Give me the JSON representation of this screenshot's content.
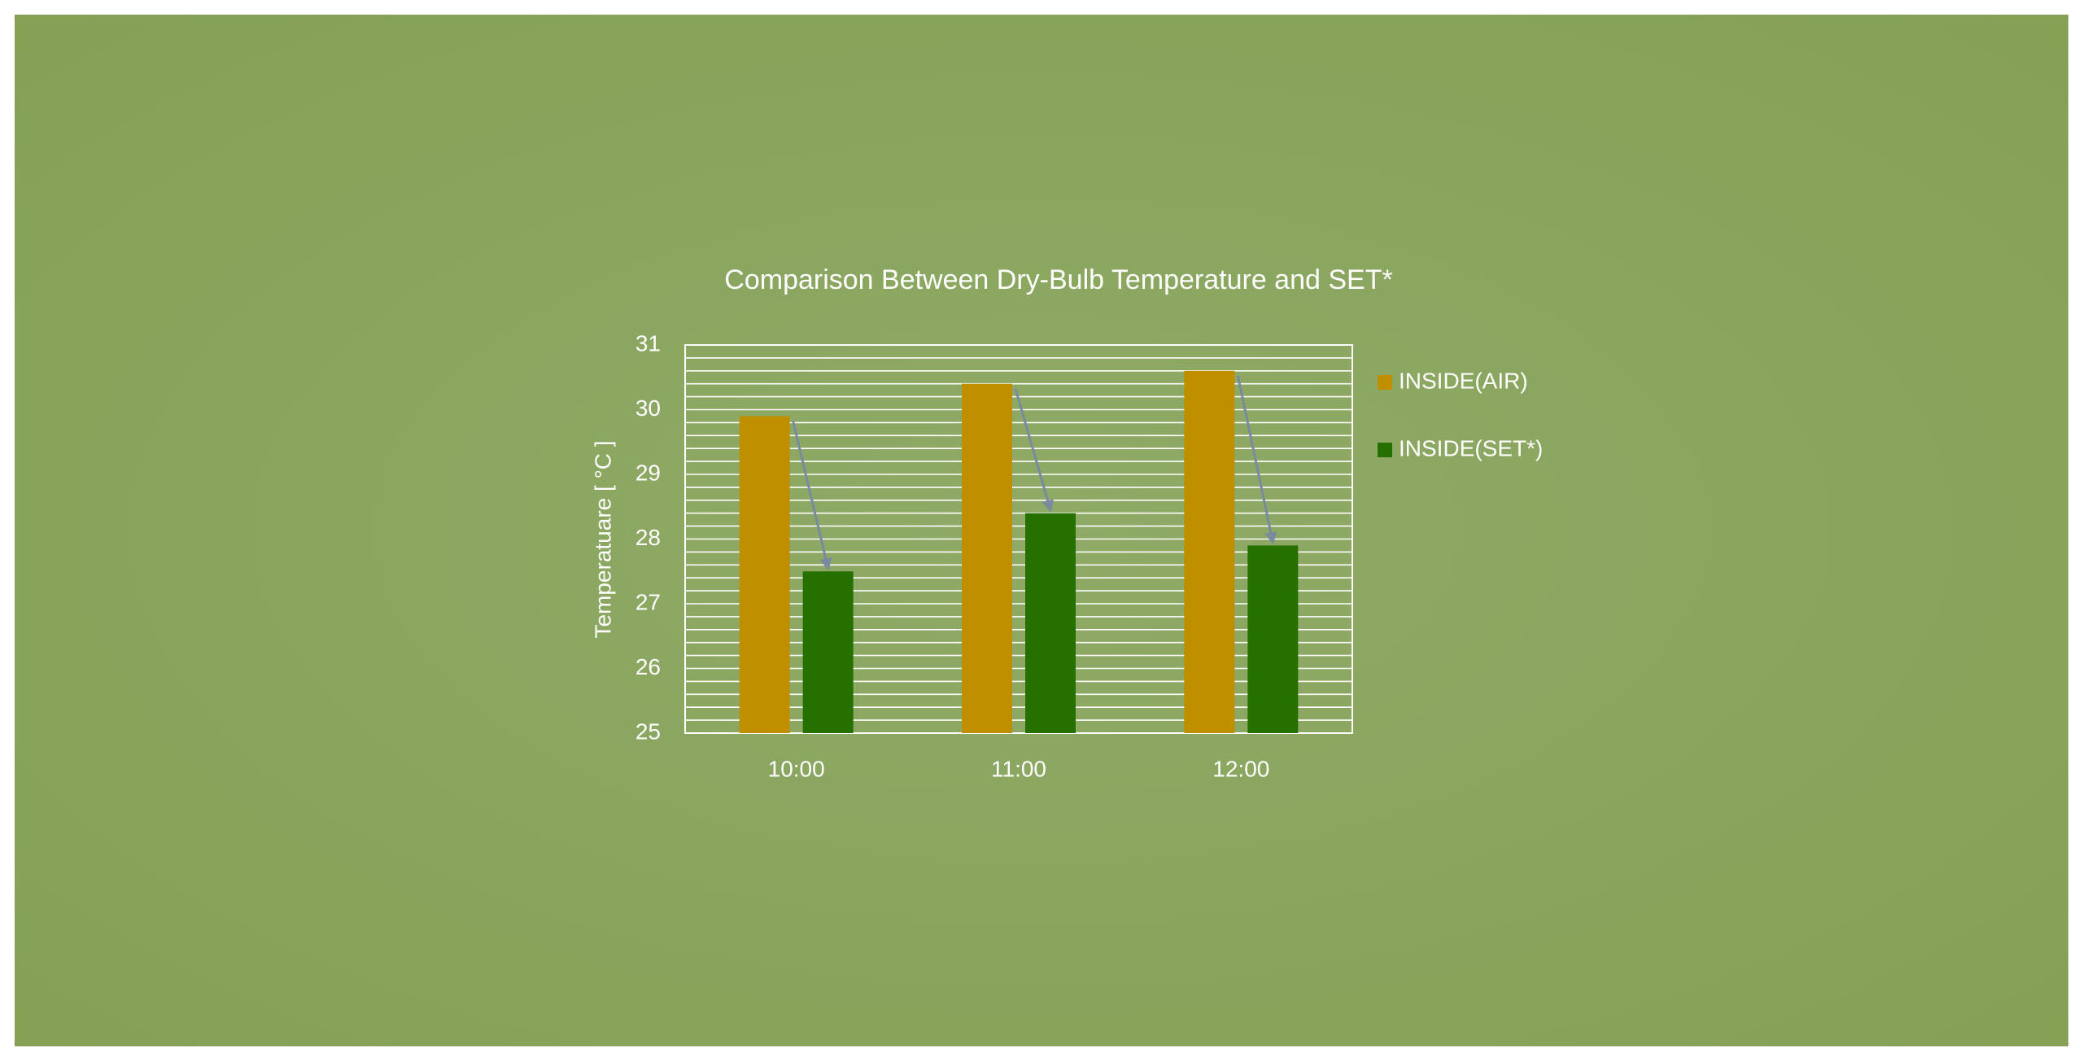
{
  "chart_data": {
    "type": "bar",
    "title": "Comparison Between Dry-Bulb Temperature and SET*",
    "y_label": "Temperatuare [ °C ]",
    "categories": [
      "10:00",
      "11:00",
      "12:00"
    ],
    "series": [
      {
        "name": "INSIDE(AIR)",
        "color": "#bf8f00",
        "values": [
          29.9,
          30.4,
          30.6
        ]
      },
      {
        "name": "INSIDE(SET*)",
        "color": "#267000",
        "values": [
          27.5,
          28.4,
          27.9
        ]
      }
    ],
    "ylim": [
      25,
      31
    ],
    "yticks": [
      25,
      26,
      27,
      28,
      29,
      30,
      31
    ],
    "minor_yticks": [
      25.2,
      25.4,
      25.6,
      25.8,
      26.2,
      26.4,
      26.6,
      26.8,
      27.2,
      27.4,
      27.6,
      27.8,
      28.2,
      28.4,
      28.6,
      28.8,
      29.2,
      29.4,
      29.6,
      29.8,
      30.2,
      30.4,
      30.6,
      30.8
    ],
    "grid": true,
    "legend": "right",
    "arrow_color": "#7a8aa0"
  }
}
